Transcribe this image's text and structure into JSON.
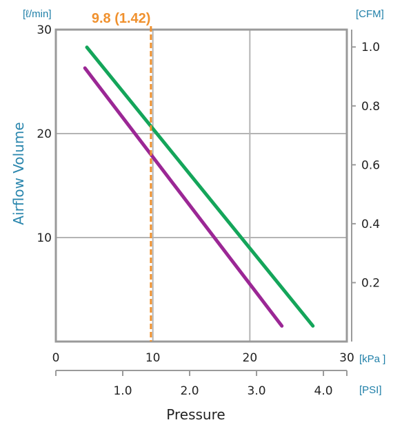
{
  "chart_data": {
    "type": "line",
    "xlabel": "Pressure",
    "ylabel": "Airflow Volume",
    "x_unit": "[kPa ]",
    "x2_unit": "[PSI]",
    "y_unit": "[ℓ/min]",
    "y2_unit": "[CFM]",
    "xlim": [
      0,
      30
    ],
    "ylim": [
      0,
      30
    ],
    "x_ticks": [
      "0",
      "10",
      "20",
      "30"
    ],
    "x_tick_values": [
      0,
      10,
      20,
      30
    ],
    "y_ticks": [
      "10",
      "20",
      "30"
    ],
    "y_tick_values": [
      10,
      20,
      30
    ],
    "y2_ticks": [
      "0.2",
      "0.4",
      "0.6",
      "0.8",
      "1.0"
    ],
    "y2_tick_values": [
      0.2,
      0.4,
      0.6,
      0.8,
      1.0
    ],
    "y2_per_y": 0.0353,
    "x2_ticks": [
      "1.0",
      "2.0",
      "3.0",
      "4.0"
    ],
    "x2_tick_values": [
      1.0,
      2.0,
      3.0,
      4.0
    ],
    "x2_per_x": 0.145,
    "grid": true,
    "series": [
      {
        "x": [
          3.2,
          26.5
        ],
        "y": [
          28.3,
          1.5
        ],
        "color": "#14a55a"
      },
      {
        "x": [
          3.0,
          23.3
        ],
        "y": [
          26.3,
          1.5
        ],
        "color": "#9b2795"
      }
    ],
    "reference_line": {
      "x": 9.8,
      "label": "9.8 (1.42)",
      "color": "#f0912e",
      "style": "dashed"
    }
  }
}
